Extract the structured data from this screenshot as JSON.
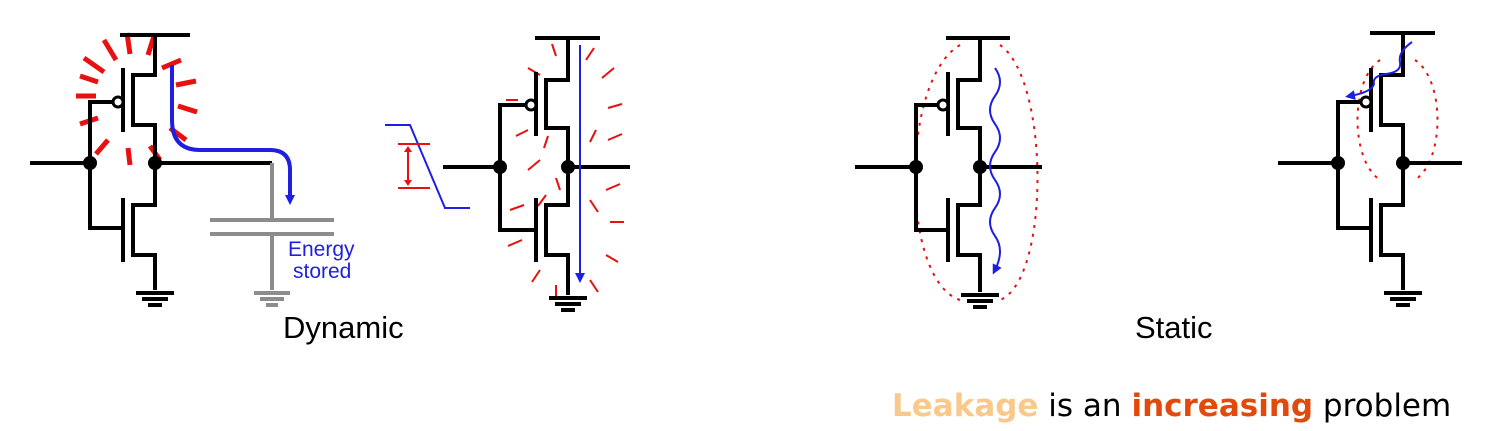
{
  "labels": {
    "dynamic": "Dynamic",
    "static": "Static",
    "energy_line1": "Energy",
    "energy_line2": "stored"
  },
  "caption": {
    "word1": "Leakage",
    "text1": " is an ",
    "word2": "increasing",
    "text2": " problem"
  },
  "colors": {
    "wire": "#000000",
    "capacitor": "#8c8c8c",
    "current": "#1f1fe0",
    "energy_burst": "#e81010",
    "leakage_highlight": "#f8c98a",
    "increasing_highlight": "#e24a0c"
  }
}
